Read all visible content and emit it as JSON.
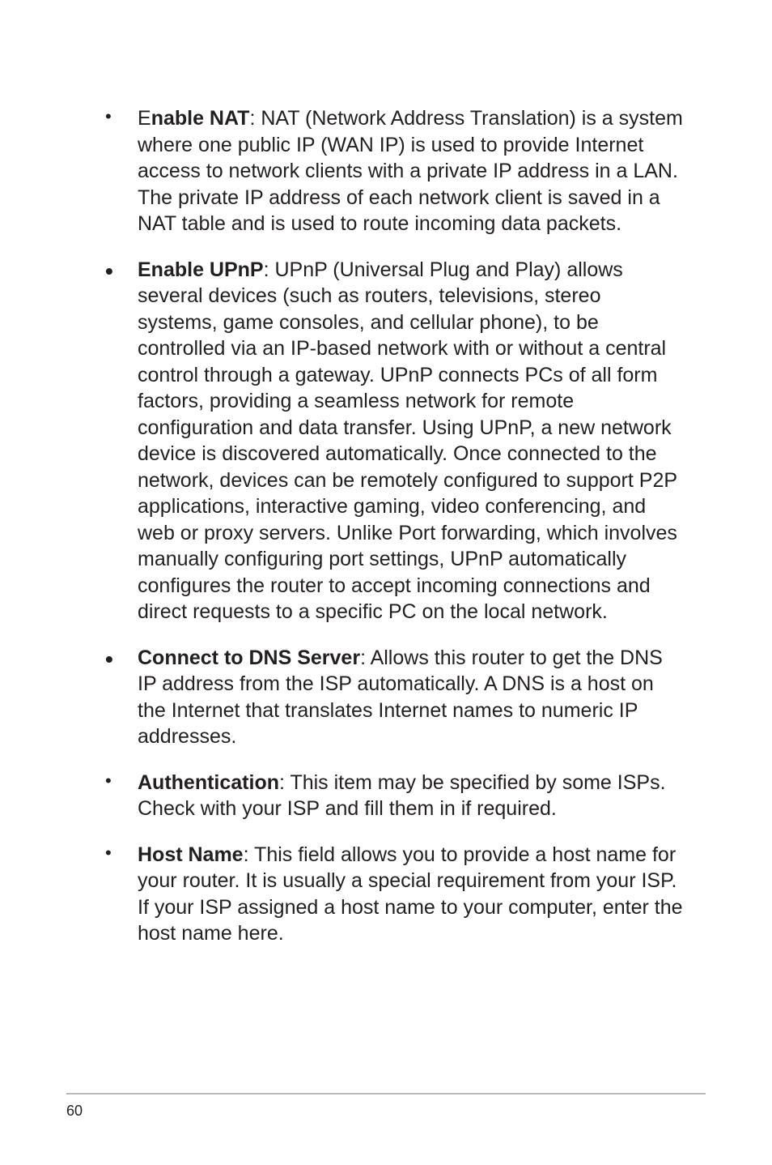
{
  "items": [
    {
      "kind": "dot",
      "lead": "E",
      "title": "nable NAT",
      "sep": ": ",
      "body": "NAT (Network Address Translation) is a system where one public IP (WAN IP) is used to provide Internet access to network clients with a private IP address in a LAN. The private IP address of each network client is saved in a NAT table and is used to route incoming data packets."
    },
    {
      "kind": "dotbold",
      "lead": "",
      "title": "Enable UPnP",
      "sep": ": ",
      "body": "UPnP (Universal Plug and Play) allows several devices (such as routers, televisions, stereo systems, game consoles, and cellular phone), to be controlled via an IP-based network with or without a central control through a gateway. UPnP connects PCs of all form factors, providing a seamless network for remote configuration and data transfer. Using UPnP, a new network device is discovered automatically. Once connected to the network, devices can be remotely configured to support P2P applications, interactive gaming, video conferencing, and web or proxy servers. Unlike Port forwarding, which involves manually configuring port settings, UPnP automatically configures the router to accept incoming connections and direct requests to a specific PC on the local network."
    },
    {
      "kind": "dotbold",
      "lead": "",
      "title": "Connect to DNS Server",
      "sep": ": ",
      "body": "Allows this router to get the DNS IP address from the ISP automatically. A DNS is a host on the Internet that translates Internet names to numeric IP addresses."
    },
    {
      "kind": "dot",
      "lead": "",
      "title": "Authentication",
      "sep": ": ",
      "body": "This item may be specified by some ISPs. Check with your ISP and fill them in if required."
    },
    {
      "kind": "dot",
      "lead": "",
      "title": "Host Name",
      "sep": ": ",
      "body": "This field allows you to provide a host name for your router. It is usually a special requirement from your ISP. If your ISP assigned a host name to your computer, enter the host name here."
    }
  ],
  "page_number": "60"
}
